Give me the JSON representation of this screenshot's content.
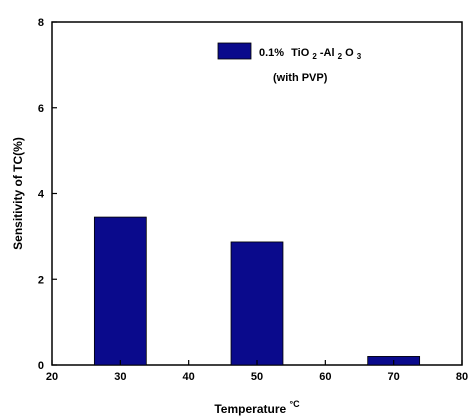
{
  "chart_data": {
    "type": "bar",
    "x": [
      30,
      50,
      70
    ],
    "values": [
      3.45,
      2.87,
      0.2
    ],
    "xlim": [
      20,
      80
    ],
    "ylim": [
      0,
      8
    ],
    "xticks": [
      20,
      30,
      40,
      50,
      60,
      70,
      80
    ],
    "yticks": [
      0,
      2,
      4,
      6,
      8
    ],
    "xlabel": "Temperature",
    "xlabel_unit": "°C",
    "ylabel": "Sensitivity of TC(%)",
    "grid": false,
    "legend_position": "top-right",
    "series": [
      {
        "name": "0.1% TiO2-Al2O3 (with PVP)",
        "legend_parts": {
          "percent": "0.1%",
          "ti": "TiO",
          "sub1": "2",
          "dash_al": "-Al",
          "sub2": "2",
          "o": "O",
          "sub3": "3",
          "line2": "(with PVP)"
        },
        "color": "#0a0a8c"
      }
    ]
  }
}
